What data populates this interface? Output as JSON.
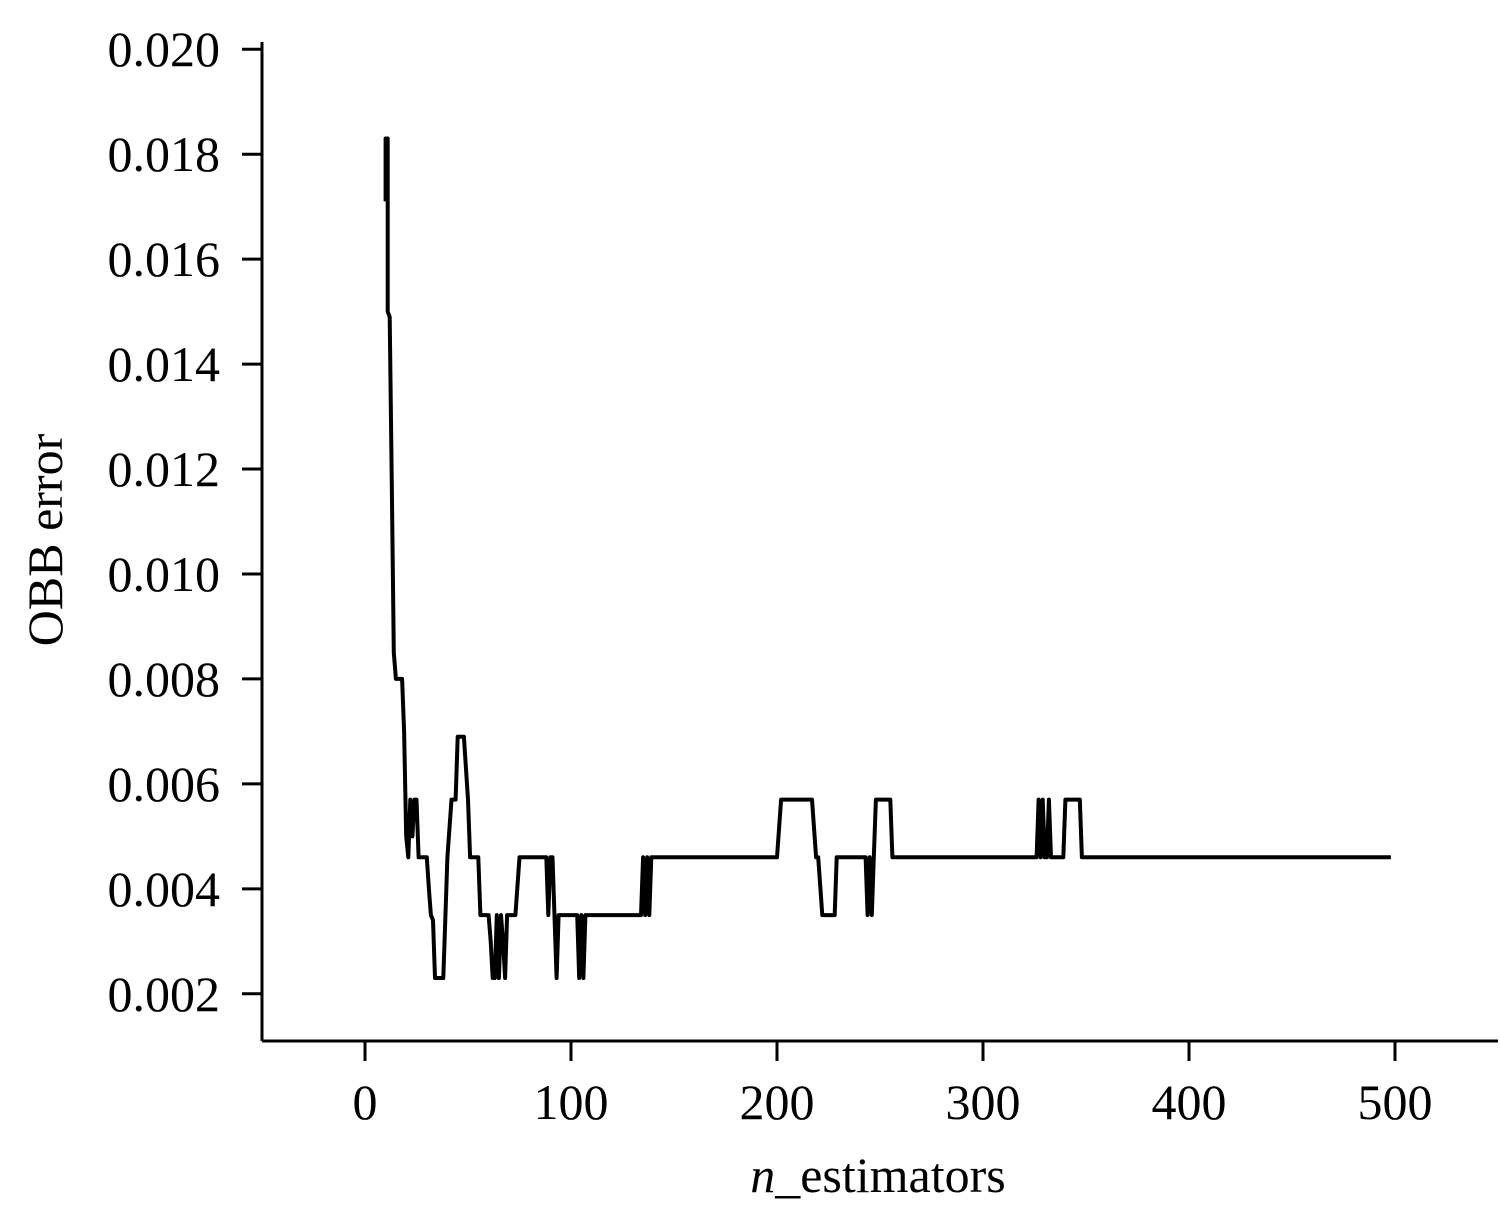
{
  "chart_data": {
    "type": "line",
    "title": "",
    "xlabel_italic": "n",
    "xlabel_rest": "_estimators",
    "ylabel": "OBB error",
    "xlim": [
      -50,
      550
    ],
    "ylim": [
      0.0011,
      0.0201
    ],
    "x_ticks": [
      0,
      100,
      200,
      300,
      400,
      500
    ],
    "x_tick_labels": [
      "0",
      "100",
      "200",
      "300",
      "400",
      "500"
    ],
    "y_ticks": [
      0.002,
      0.004,
      0.006,
      0.008,
      0.01,
      0.012,
      0.014,
      0.016,
      0.018,
      0.02
    ],
    "y_tick_labels": [
      "0.002",
      "0.004",
      "0.006",
      "0.008",
      "0.010",
      "0.012",
      "0.014",
      "0.016",
      "0.018",
      "0.020"
    ],
    "grid": false,
    "legend": "none",
    "line_color": "#000000",
    "series": [
      {
        "x": [
          10,
          10,
          11,
          11,
          12,
          13,
          14,
          15,
          16,
          18,
          19,
          20,
          21,
          22,
          23,
          24,
          25,
          26,
          30,
          31,
          32,
          33,
          34,
          38,
          40,
          42,
          44,
          45,
          48,
          50,
          51,
          53,
          55,
          56,
          58,
          60,
          61,
          62,
          63,
          64,
          65,
          66,
          67,
          68,
          69,
          70,
          73,
          75,
          88,
          89,
          90,
          91,
          93,
          94,
          95,
          96,
          103,
          104,
          105,
          106,
          107,
          108,
          134,
          135,
          136,
          137,
          138,
          139,
          141,
          200,
          202,
          217,
          219,
          220,
          222,
          223,
          228,
          229,
          243,
          244,
          245,
          246,
          247,
          248,
          255,
          256,
          326,
          327,
          328,
          329,
          330,
          331,
          332,
          333,
          334,
          335,
          339,
          340,
          341,
          347,
          348,
          498
        ],
        "y": [
          0.0171,
          0.0183,
          0.0183,
          0.015,
          0.0149,
          0.0117,
          0.0085,
          0.008,
          0.008,
          0.008,
          0.007,
          0.005,
          0.0046,
          0.0057,
          0.005,
          0.0057,
          0.0057,
          0.0046,
          0.0046,
          0.004,
          0.0035,
          0.0034,
          0.0023,
          0.0023,
          0.0046,
          0.0057,
          0.0057,
          0.0069,
          0.0069,
          0.0057,
          0.0046,
          0.0046,
          0.0046,
          0.0035,
          0.0035,
          0.0035,
          0.003,
          0.0023,
          0.0023,
          0.0035,
          0.0023,
          0.0035,
          0.003,
          0.0023,
          0.0035,
          0.0035,
          0.0035,
          0.0046,
          0.0046,
          0.0035,
          0.0046,
          0.0046,
          0.0023,
          0.0035,
          0.0035,
          0.0035,
          0.0035,
          0.0023,
          0.0035,
          0.0023,
          0.0035,
          0.0035,
          0.0035,
          0.0046,
          0.0035,
          0.0046,
          0.0035,
          0.0046,
          0.0046,
          0.0046,
          0.0057,
          0.0057,
          0.0046,
          0.0046,
          0.0035,
          0.0035,
          0.0035,
          0.0046,
          0.0046,
          0.0035,
          0.0046,
          0.0035,
          0.0046,
          0.0057,
          0.0057,
          0.0046,
          0.0046,
          0.0057,
          0.0046,
          0.0057,
          0.0046,
          0.0046,
          0.0057,
          0.0046,
          0.0046,
          0.0046,
          0.0046,
          0.0057,
          0.0057,
          0.0057,
          0.0046,
          0.0046
        ]
      }
    ]
  }
}
